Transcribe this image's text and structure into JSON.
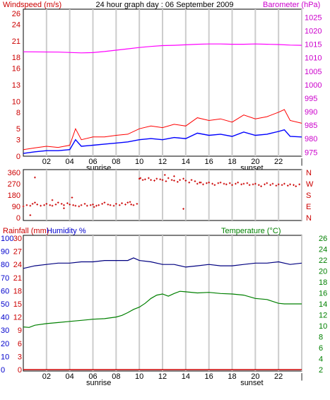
{
  "header": {
    "title": "24 hour graph day : 06 September 2009",
    "left_label": "Windspeed (m/s)",
    "right_label": "Barometer (hPa)"
  },
  "colors": {
    "wind_speed": "#ff0000",
    "wind_avg": "#0000ff",
    "barometer": "#ff00ff",
    "direction": "#cc0000",
    "humidity": "#000080",
    "temperature": "#008000",
    "rain": "#cc0000",
    "grid": "#cccccc",
    "frame": "#000000",
    "left_axis_red": "#cc0000",
    "left_axis_blue": "#0000cc"
  },
  "chart_data": [
    {
      "id": "wind-baro",
      "type": "line",
      "title": "24 hour graph day : 06 September 2009",
      "ylabel_left": "Windspeed (m/s)",
      "ylabel_right": "Barometer (hPa)",
      "x_ticks": [
        "02",
        "04",
        "06",
        "08",
        "10",
        "12",
        "14",
        "16",
        "18",
        "20",
        "22",
        "|"
      ],
      "x_annotations": [
        "sunrise",
        "sunset"
      ],
      "y_left_ticks": [
        "0",
        "3",
        "5",
        "8",
        "10",
        "13",
        "16",
        "18",
        "21",
        "24",
        "26"
      ],
      "y_left_range": [
        0,
        26
      ],
      "y_right_ticks": [
        "975",
        "980",
        "985",
        "990",
        "995",
        "1000",
        "1005",
        "1010",
        "1015",
        "1020",
        "1025"
      ],
      "y_right_range": [
        973.5,
        1028
      ],
      "barometer": {
        "hours": [
          0,
          3,
          5,
          6,
          7,
          8,
          9,
          10,
          11,
          12,
          13,
          14,
          15,
          16,
          17,
          18,
          19,
          20,
          21,
          22,
          23,
          24
        ],
        "values": [
          1012.2,
          1012.1,
          1011.8,
          1011.9,
          1012.3,
          1012.8,
          1013.3,
          1013.8,
          1014.2,
          1014.5,
          1014.6,
          1014.8,
          1015.0,
          1015.1,
          1015.1,
          1015.0,
          1015.0,
          1015.1,
          1015.0,
          1014.9,
          1014.7,
          1014.6
        ]
      },
      "wind_gust": {
        "hours": [
          0,
          1,
          2,
          3,
          4,
          4.5,
          5,
          6,
          7,
          8,
          9,
          10,
          11,
          12,
          13,
          14,
          15,
          16,
          17,
          18,
          19,
          20,
          21,
          22,
          22.5,
          23,
          24
        ],
        "values": [
          1.2,
          1.5,
          1.8,
          1.6,
          2.0,
          5.0,
          3.0,
          3.5,
          3.5,
          3.8,
          4.0,
          5.0,
          5.5,
          5.2,
          5.8,
          5.5,
          7.0,
          6.5,
          6.8,
          6.2,
          7.5,
          6.8,
          7.2,
          8.0,
          8.5,
          6.5,
          6.0
        ]
      },
      "wind_avg": {
        "hours": [
          0,
          1,
          2,
          3,
          4,
          4.5,
          5,
          6,
          7,
          8,
          9,
          10,
          11,
          12,
          13,
          14,
          15,
          16,
          17,
          18,
          19,
          20,
          21,
          22,
          22.5,
          23,
          24
        ],
        "values": [
          0.5,
          0.8,
          1.0,
          1.0,
          1.2,
          3.0,
          1.8,
          2.0,
          2.2,
          2.4,
          2.6,
          3.0,
          3.2,
          3.0,
          3.4,
          3.2,
          4.2,
          3.8,
          4.0,
          3.6,
          4.4,
          3.8,
          4.0,
          4.5,
          4.8,
          3.6,
          3.5
        ]
      }
    },
    {
      "id": "wind-direction",
      "type": "scatter",
      "y_left_ticks": [
        "360",
        "270",
        "180",
        "90",
        "0"
      ],
      "y_left_range": [
        0,
        360
      ],
      "y_right_ticks": [
        "N",
        "W",
        "S",
        "E",
        "N"
      ],
      "points": {
        "hours": [
          0.0,
          0.3,
          0.6,
          0.8,
          1.0,
          1.2,
          1.5,
          1.8,
          2.0,
          2.3,
          2.5,
          2.8,
          3.0,
          3.3,
          3.5,
          3.8,
          4.0,
          4.3,
          4.5,
          4.8,
          5.0,
          5.3,
          5.5,
          5.8,
          6.0,
          6.3,
          6.5,
          6.8,
          7.0,
          7.3,
          7.5,
          7.8,
          8.0,
          8.3,
          8.5,
          8.8,
          9.0,
          9.3,
          9.5,
          9.8,
          10.0,
          10.3,
          10.5,
          10.8,
          11.0,
          11.3,
          11.5,
          11.8,
          12.0,
          12.3,
          12.5,
          12.8,
          13.0,
          13.3,
          13.5,
          13.8,
          14.0,
          14.3,
          14.5,
          14.8,
          15.0,
          15.3,
          15.5,
          15.8,
          16.0,
          16.3,
          16.5,
          16.8,
          17.0,
          17.3,
          17.5,
          17.8,
          18.0,
          18.3,
          18.5,
          18.8,
          19.0,
          19.3,
          19.5,
          19.8,
          20.0,
          20.3,
          20.5,
          20.8,
          21.0,
          21.3,
          21.5,
          21.8,
          22.0,
          22.3,
          22.5,
          22.8,
          23.0,
          23.3,
          23.5,
          23.8,
          1.0,
          2.5,
          4.2,
          9.2,
          13.0,
          13.8,
          12.2,
          0.6,
          3.5,
          6.1,
          10.1,
          15.2
        ],
        "values": [
          90,
          100,
          95,
          110,
          120,
          105,
          95,
          100,
          110,
          100,
          95,
          105,
          120,
          110,
          100,
          115,
          105,
          100,
          95,
          90,
          100,
          110,
          95,
          100,
          105,
          95,
          100,
          110,
          120,
          105,
          100,
          95,
          110,
          100,
          115,
          105,
          120,
          105,
          100,
          110,
          310,
          300,
          305,
          315,
          300,
          295,
          310,
          305,
          300,
          290,
          315,
          300,
          295,
          285,
          300,
          310,
          295,
          280,
          300,
          290,
          270,
          280,
          265,
          275,
          280,
          270,
          260,
          275,
          280,
          270,
          265,
          275,
          260,
          270,
          280,
          265,
          270,
          275,
          260,
          265,
          270,
          260,
          250,
          265,
          275,
          260,
          270,
          255,
          265,
          260,
          270,
          255,
          265,
          260,
          250,
          265,
          320,
          140,
          160,
          125,
          330,
          70,
          340,
          20,
          75,
          85,
          315,
          280
        ]
      }
    },
    {
      "id": "humidity-temperature",
      "type": "line",
      "ylabel_left_1": "Rainfall (mm)",
      "ylabel_left_2": "Humidity %",
      "ylabel_right": "Temperature (°C)",
      "y_rain_ticks": [
        "100",
        "90",
        "80",
        "70",
        "60",
        "50",
        "40",
        "30",
        "20",
        "10",
        "0"
      ],
      "y_hum_ticks": [
        "30",
        "27",
        "24",
        "21",
        "18",
        "15",
        "12",
        "9",
        "6",
        "3",
        "0"
      ],
      "y_right_ticks": [
        "26",
        "24",
        "22",
        "20",
        "18",
        "16",
        "14",
        "12",
        "10",
        "8",
        "6",
        "4",
        "2"
      ],
      "y_right_range": [
        2,
        26
      ],
      "temperature": {
        "hours": [
          0,
          0.5,
          1,
          2,
          3,
          4,
          5,
          6,
          7,
          8,
          8.5,
          9,
          9.5,
          10,
          10.5,
          11,
          11.5,
          12,
          12.5,
          13,
          13.5,
          14,
          15,
          16,
          17,
          18,
          19,
          20,
          21,
          22,
          22.5,
          23,
          24
        ],
        "values": [
          9.8,
          9.7,
          10.1,
          10.4,
          10.6,
          10.8,
          11.0,
          11.2,
          11.3,
          11.6,
          11.9,
          12.4,
          13.0,
          13.4,
          14.1,
          15.0,
          15.6,
          15.8,
          15.4,
          15.9,
          16.3,
          16.2,
          16.0,
          16.1,
          15.9,
          15.8,
          15.6,
          15.0,
          14.8,
          14.1,
          14.0,
          14.0,
          14.0
        ]
      },
      "humidity": {
        "hours": [
          0,
          1,
          2,
          3,
          4,
          5,
          6,
          7,
          8,
          9,
          9.5,
          10,
          11,
          12,
          13,
          14,
          15,
          16,
          17,
          18,
          19,
          20,
          21,
          22,
          23,
          24
        ],
        "values": [
          77,
          79,
          80,
          81,
          81,
          82,
          82,
          83,
          83,
          83,
          85,
          83,
          82,
          80,
          80,
          78,
          79,
          80,
          79,
          79,
          80,
          81,
          81,
          82,
          80,
          81
        ]
      },
      "rain": {
        "hours": [
          0,
          24
        ],
        "values": [
          0,
          0
        ]
      }
    }
  ]
}
